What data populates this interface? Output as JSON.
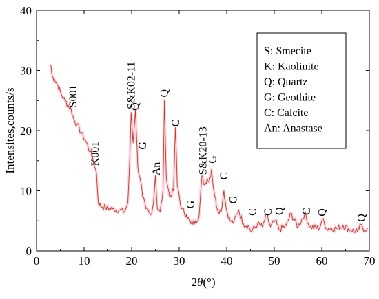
{
  "chart_data": {
    "type": "line",
    "title": "",
    "xlabel_prefix": "2",
    "xlabel_theta": "θ",
    "xlabel_suffix": "(°)",
    "ylabel": "Intensites,counts/s",
    "xlim": [
      0,
      70
    ],
    "ylim": [
      0,
      40
    ],
    "x_ticks": [
      "0",
      "10",
      "20",
      "30",
      "40",
      "50",
      "60",
      "70"
    ],
    "y_ticks": [
      "0",
      "10",
      "20",
      "30",
      "40"
    ],
    "grid": false,
    "line_color": "#c0392b",
    "halo_color": "#f4b6c2",
    "series": [
      {
        "points": [
          [
            3.0,
            31
          ],
          [
            3.3,
            29
          ],
          [
            3.8,
            28.5
          ],
          [
            4.5,
            27.5
          ],
          [
            5.2,
            26
          ],
          [
            6.0,
            25
          ],
          [
            6.8,
            24
          ],
          [
            7.3,
            23.5
          ],
          [
            7.8,
            22
          ],
          [
            8.5,
            21
          ],
          [
            9.5,
            19.5
          ],
          [
            10.5,
            18
          ],
          [
            11.3,
            16.5
          ],
          [
            11.8,
            15.5
          ],
          [
            12.2,
            14
          ],
          [
            12.6,
            13
          ],
          [
            13.0,
            8
          ],
          [
            13.5,
            7.5
          ],
          [
            14.5,
            7.2
          ],
          [
            16.0,
            7.0
          ],
          [
            17.5,
            6.8
          ],
          [
            18.5,
            6.5
          ],
          [
            19.2,
            8
          ],
          [
            19.6,
            15
          ],
          [
            19.9,
            23
          ],
          [
            20.3,
            18
          ],
          [
            20.8,
            23.5
          ],
          [
            21.3,
            14
          ],
          [
            21.8,
            12
          ],
          [
            22.3,
            9
          ],
          [
            23.0,
            7
          ],
          [
            24.0,
            6
          ],
          [
            24.6,
            8
          ],
          [
            25.0,
            12.5
          ],
          [
            25.4,
            7
          ],
          [
            26.0,
            6.5
          ],
          [
            26.6,
            10
          ],
          [
            26.9,
            25
          ],
          [
            27.3,
            12
          ],
          [
            28.0,
            9
          ],
          [
            28.8,
            10
          ],
          [
            29.2,
            20.5
          ],
          [
            29.6,
            11
          ],
          [
            30.5,
            7
          ],
          [
            31.5,
            6
          ],
          [
            32.5,
            4.5
          ],
          [
            33.5,
            5
          ],
          [
            34.2,
            6
          ],
          [
            34.8,
            12.5
          ],
          [
            35.3,
            11
          ],
          [
            35.9,
            12
          ],
          [
            36.3,
            11.5
          ],
          [
            36.8,
            13.5
          ],
          [
            37.3,
            10
          ],
          [
            38.0,
            7
          ],
          [
            38.8,
            6.5
          ],
          [
            39.4,
            10
          ],
          [
            39.9,
            7
          ],
          [
            40.7,
            5
          ],
          [
            41.5,
            4.8
          ],
          [
            42.5,
            6.8
          ],
          [
            43.5,
            4.5
          ],
          [
            44.5,
            4.2
          ],
          [
            45.2,
            3.2
          ],
          [
            46.5,
            4.5
          ],
          [
            47.5,
            4
          ],
          [
            48.4,
            6
          ],
          [
            49.2,
            4
          ],
          [
            50.2,
            5
          ],
          [
            51.0,
            3.5
          ],
          [
            52.5,
            4.2
          ],
          [
            53.5,
            6.2
          ],
          [
            55.0,
            4
          ],
          [
            56.4,
            6.2
          ],
          [
            57.5,
            4
          ],
          [
            59.5,
            3.8
          ],
          [
            60.1,
            5.3
          ],
          [
            61.0,
            3.8
          ],
          [
            63.0,
            3.7
          ],
          [
            64.5,
            4.2
          ],
          [
            66.0,
            3.5
          ],
          [
            67.5,
            3.2
          ],
          [
            68.2,
            4.3
          ],
          [
            69.0,
            3.5
          ],
          [
            69.6,
            3.8
          ]
        ]
      }
    ],
    "annotations": [
      {
        "text": "S001",
        "x": 7.7,
        "y": 23.5,
        "rotate": true
      },
      {
        "text": "K001",
        "x": 12.3,
        "y": 13.8,
        "rotate": true
      },
      {
        "text": "S&K02-11",
        "x": 19.9,
        "y": 23.2,
        "rotate": true
      },
      {
        "text": "Q",
        "x": 20.7,
        "y": 23.0,
        "rotate": true
      },
      {
        "text": "G",
        "x": 22.3,
        "y": 16.5,
        "rotate": true
      },
      {
        "text": "An",
        "x": 25.2,
        "y": 12.2,
        "rotate": true
      },
      {
        "text": "Q",
        "x": 26.9,
        "y": 25.2,
        "rotate": true
      },
      {
        "text": "C",
        "x": 29.3,
        "y": 20.3,
        "rotate": true
      },
      {
        "text": "G",
        "x": 32.4,
        "y": 6.7,
        "rotate": true
      },
      {
        "text": "S&K20-13",
        "x": 35.0,
        "y": 12.3,
        "rotate": true
      },
      {
        "text": "G",
        "x": 37.0,
        "y": 14.2,
        "rotate": true
      },
      {
        "text": "C",
        "x": 39.4,
        "y": 11.5,
        "rotate": true
      },
      {
        "text": "G",
        "x": 41.4,
        "y": 7.5,
        "rotate": true
      },
      {
        "text": "C",
        "x": 45.4,
        "y": 5.5,
        "rotate": true
      },
      {
        "text": "C",
        "x": 48.7,
        "y": 5.5,
        "rotate": true
      },
      {
        "text": "Q",
        "x": 51.1,
        "y": 5.6,
        "rotate": true
      },
      {
        "text": "C",
        "x": 56.8,
        "y": 5.6,
        "rotate": true
      },
      {
        "text": "Q",
        "x": 60.1,
        "y": 5.4,
        "rotate": true
      },
      {
        "text": "Q",
        "x": 68.3,
        "y": 4.5,
        "rotate": true
      }
    ],
    "legend": {
      "position": "top-right",
      "entries": [
        "S: Smecite",
        "K: Kaolinite",
        "Q: Quartz",
        "G: Geothite",
        "C: Calcite",
        "An: Anastase"
      ]
    }
  }
}
